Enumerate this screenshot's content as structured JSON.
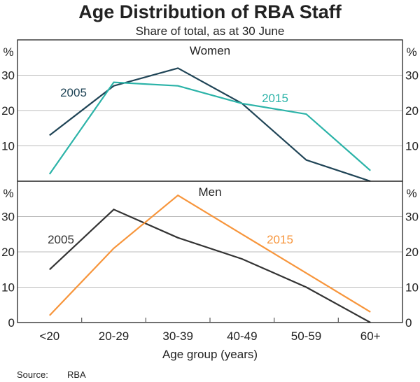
{
  "chart_data": {
    "type": "line",
    "title": "Age Distribution of RBA Staff",
    "subtitle": "Share of total, as at 30 June",
    "xlabel": "Age group (years)",
    "source_label": "Source:",
    "source_value": "RBA",
    "categories": [
      "<20",
      "20-29",
      "30-39",
      "40-49",
      "50-59",
      "60+"
    ],
    "panels": [
      {
        "title": "Women",
        "unit": "%",
        "ylim": [
          0,
          40
        ],
        "yticks": [
          10,
          20,
          30
        ],
        "grid": true,
        "series": [
          {
            "name": "2005",
            "color": "#1f4456",
            "values": [
              13,
              27,
              32,
              22,
              6,
              0
            ]
          },
          {
            "name": "2015",
            "color": "#2bb3a8",
            "values": [
              2,
              28,
              27,
              22,
              19,
              3
            ]
          }
        ]
      },
      {
        "title": "Men",
        "unit": "%",
        "ylim": [
          0,
          40
        ],
        "yticks": [
          0,
          10,
          20,
          30
        ],
        "grid": true,
        "series": [
          {
            "name": "2005",
            "color": "#333333",
            "values": [
              15,
              32,
              24,
              18,
              10,
              0
            ]
          },
          {
            "name": "2015",
            "color": "#f7953b",
            "values": [
              2,
              21,
              36,
              25,
              14,
              3
            ]
          }
        ]
      }
    ]
  }
}
